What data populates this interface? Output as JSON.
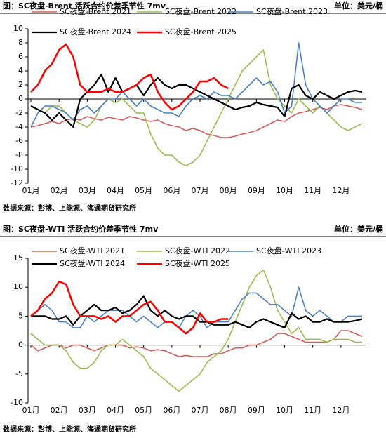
{
  "chart_data": [
    {
      "type": "line",
      "title": "图：SC夜盘-Brent 活跃合约价差季节性 7mv",
      "unit_label": "单位：美元/桶",
      "source": "数据来源：彭博、上能源、海通期货研究所",
      "categories": [
        "01月",
        null,
        null,
        null,
        "02月",
        null,
        null,
        null,
        "03月",
        null,
        null,
        null,
        "04月",
        null,
        null,
        null,
        "05月",
        null,
        null,
        null,
        "06月",
        null,
        null,
        null,
        "07月",
        null,
        null,
        null,
        "08月",
        null,
        null,
        null,
        "09月",
        null,
        null,
        null,
        "10月",
        null,
        null,
        null,
        "11月",
        null,
        null,
        null,
        "12月",
        null,
        null,
        null
      ],
      "ylim": [
        -12,
        10
      ],
      "yticks": [
        -12,
        -10,
        -8,
        -6,
        -4,
        -2,
        0,
        2,
        4,
        6,
        8,
        10
      ],
      "series": [
        {
          "name": "SC夜盘-Brent 2021",
          "color": "#d0605e",
          "values": [
            -4,
            -3.8,
            -3.5,
            -3.2,
            -3.5,
            -3,
            -2.8,
            -3,
            -2.5,
            -2.8,
            -3,
            -2.6,
            -2.8,
            -3,
            -2.5,
            -2.7,
            -3,
            -3.2,
            -3,
            -3.5,
            -3.8,
            -4,
            -4.5,
            -4.2,
            -4.5,
            -5,
            -5.2,
            -5.5,
            -5.5,
            -5.3,
            -5,
            -4.8,
            -4.5,
            -4,
            -3.5,
            -3,
            -3.2,
            -2.5,
            -2,
            -1.8,
            -1.5,
            -1.2,
            -1.5,
            -1,
            -0.8,
            -1,
            -1.2,
            -1.5
          ]
        },
        {
          "name": "SC夜盘-Brent 2022",
          "color": "#9bbb59",
          "values": [
            -1,
            -1.5,
            -2,
            -1,
            -1,
            -2,
            -3,
            -3.5,
            -4,
            -3,
            -1,
            0,
            -0.5,
            0,
            -1,
            -2,
            -2,
            -5,
            -7,
            -8,
            -8,
            -9,
            -9.5,
            -9,
            -8,
            -6,
            -4,
            -2,
            0,
            2,
            4,
            5,
            6,
            7,
            2,
            0,
            -1,
            -2,
            0,
            -1,
            -2,
            -1,
            -2,
            -3,
            -4,
            -4.5,
            -4,
            -3.5
          ]
        },
        {
          "name": "SC夜盘-Brent 2023",
          "color": "#4f81bd",
          "values": [
            -4,
            -2,
            -1,
            -1,
            -1.5,
            -2,
            -3,
            -1.5,
            -1,
            -2,
            -1,
            0,
            0,
            1,
            0,
            -1,
            0,
            -1,
            -1.5,
            -2,
            -2,
            -2.5,
            -1,
            0,
            0.5,
            0,
            1,
            0.5,
            0.5,
            0,
            1,
            2,
            3,
            2,
            2.5,
            1,
            -2,
            -1,
            8,
            2,
            0,
            -1,
            -2,
            -1,
            0,
            0,
            -0.5,
            -0.5
          ]
        },
        {
          "name": "SC夜盘-Brent 2024",
          "color": "#000000",
          "width": 2.2,
          "values": [
            -1,
            -1.5,
            -2,
            -3,
            -2,
            -3,
            -4,
            0,
            1,
            2,
            3.5,
            1,
            3,
            1,
            1.5,
            2,
            0.5,
            2,
            3,
            2,
            1.5,
            2,
            2,
            1.5,
            1,
            0.5,
            0,
            -0.5,
            -1,
            -1.5,
            -1.2,
            -1,
            -0.5,
            -0.8,
            -1,
            -1.2,
            -2.5,
            1.5,
            2,
            0.5,
            0,
            1,
            0.5,
            0,
            0.5,
            1,
            1.2,
            1
          ]
        },
        {
          "name": "SC夜盘-Brent 2025",
          "color": "#ff0000",
          "width": 2.5,
          "values": [
            1,
            2,
            4,
            5,
            7,
            7.8,
            6,
            2,
            1,
            1,
            1,
            1.5,
            1,
            1,
            1.5,
            2,
            3,
            3.5,
            1,
            -0.5,
            -1.5,
            -1,
            0,
            1,
            2.5,
            2.5,
            3,
            2,
            1.5,
            null,
            null,
            null,
            null,
            null,
            null,
            null,
            null,
            null,
            null,
            null,
            null,
            null,
            null,
            null,
            null,
            null,
            null,
            null
          ]
        }
      ]
    },
    {
      "type": "line",
      "title": "图：SC夜盘-WTI 活跃合约价差季节性 7mv",
      "unit_label": "单位：美元/桶",
      "source": "数据来源：彭博、上能源、海通期货研究所",
      "categories": [
        "01月",
        null,
        null,
        null,
        "02月",
        null,
        null,
        null,
        "03月",
        null,
        null,
        null,
        "04月",
        null,
        null,
        null,
        "05月",
        null,
        null,
        null,
        "06月",
        null,
        null,
        null,
        "07月",
        null,
        null,
        null,
        "08月",
        null,
        null,
        null,
        "09月",
        null,
        null,
        null,
        "10月",
        null,
        null,
        null,
        "11月",
        null,
        null,
        null,
        "12月",
        null,
        null,
        null
      ],
      "ylim": [
        -10,
        15
      ],
      "yticks": [
        -10,
        -5,
        0,
        5,
        10,
        15
      ],
      "series": [
        {
          "name": "SC夜盘-WTI 2021",
          "color": "#d0605e",
          "values": [
            0,
            -1,
            -0.5,
            0,
            0,
            -0.5,
            0,
            0,
            -0.5,
            -1,
            -0.5,
            0,
            0,
            0,
            -0.5,
            -0.3,
            -0.5,
            -1,
            -0.8,
            -1,
            -1.5,
            -2,
            -1.8,
            -2,
            -2,
            -2,
            -1.5,
            -1.5,
            -1,
            -0.5,
            -0.5,
            0,
            0,
            0.5,
            1,
            2,
            2,
            1.5,
            1,
            0.5,
            0.5,
            0.5,
            0.5,
            1,
            2.5,
            2.5,
            2,
            1.5
          ]
        },
        {
          "name": "SC夜盘-WTI 2022",
          "color": "#9bbb59",
          "values": [
            2,
            1,
            0,
            0,
            0,
            -1,
            -3,
            -4,
            -4,
            -3,
            -1,
            0,
            0,
            1,
            0,
            -1,
            -2,
            -4,
            -5,
            -6,
            -7,
            -8,
            -7,
            -6,
            -5,
            -3,
            -2,
            -1,
            1,
            4,
            7,
            10,
            12,
            13,
            10,
            6,
            4,
            2,
            3,
            1,
            1,
            1,
            0.5,
            1,
            1,
            1,
            0.5,
            0.5
          ]
        },
        {
          "name": "SC夜盘-WTI 2023",
          "color": "#4f81bd",
          "values": [
            5,
            6,
            7,
            6,
            4,
            4,
            3,
            3,
            5,
            4,
            5,
            6,
            6,
            6,
            5,
            4,
            5,
            4,
            3,
            4,
            4,
            3,
            5,
            6,
            5,
            3,
            4,
            4,
            4,
            6,
            8,
            9,
            9,
            8,
            7,
            7,
            6,
            5,
            10,
            6,
            5,
            6,
            5,
            4,
            4,
            5,
            5,
            5
          ]
        },
        {
          "name": "SC夜盘-WTI 2024",
          "color": "#000000",
          "width": 2.2,
          "values": [
            5,
            5,
            5,
            4.5,
            4.5,
            5,
            3.5,
            5,
            6,
            7,
            6,
            6,
            6.5,
            5.5,
            6,
            7,
            8.5,
            6,
            5,
            6,
            5,
            4.5,
            5,
            5,
            4,
            4,
            3.5,
            3.5,
            3.5,
            4,
            3.5,
            3,
            4,
            4.5,
            4,
            3.5,
            3,
            5.5,
            4.5,
            5,
            4,
            4,
            4.5,
            4,
            4,
            4,
            4.2,
            4.5
          ]
        },
        {
          "name": "SC夜盘-WTI 2025",
          "color": "#ff0000",
          "width": 2.5,
          "values": [
            5,
            6,
            8,
            9,
            11,
            10.5,
            7,
            5,
            5,
            5,
            4.5,
            5,
            4,
            5,
            5,
            6,
            7,
            7.5,
            6,
            4,
            4,
            3,
            2,
            3,
            5.5,
            4,
            4,
            4.5,
            4.5,
            null,
            null,
            null,
            null,
            null,
            null,
            null,
            null,
            null,
            null,
            null,
            null,
            null,
            null,
            null,
            null,
            null,
            null,
            null
          ]
        }
      ]
    }
  ]
}
